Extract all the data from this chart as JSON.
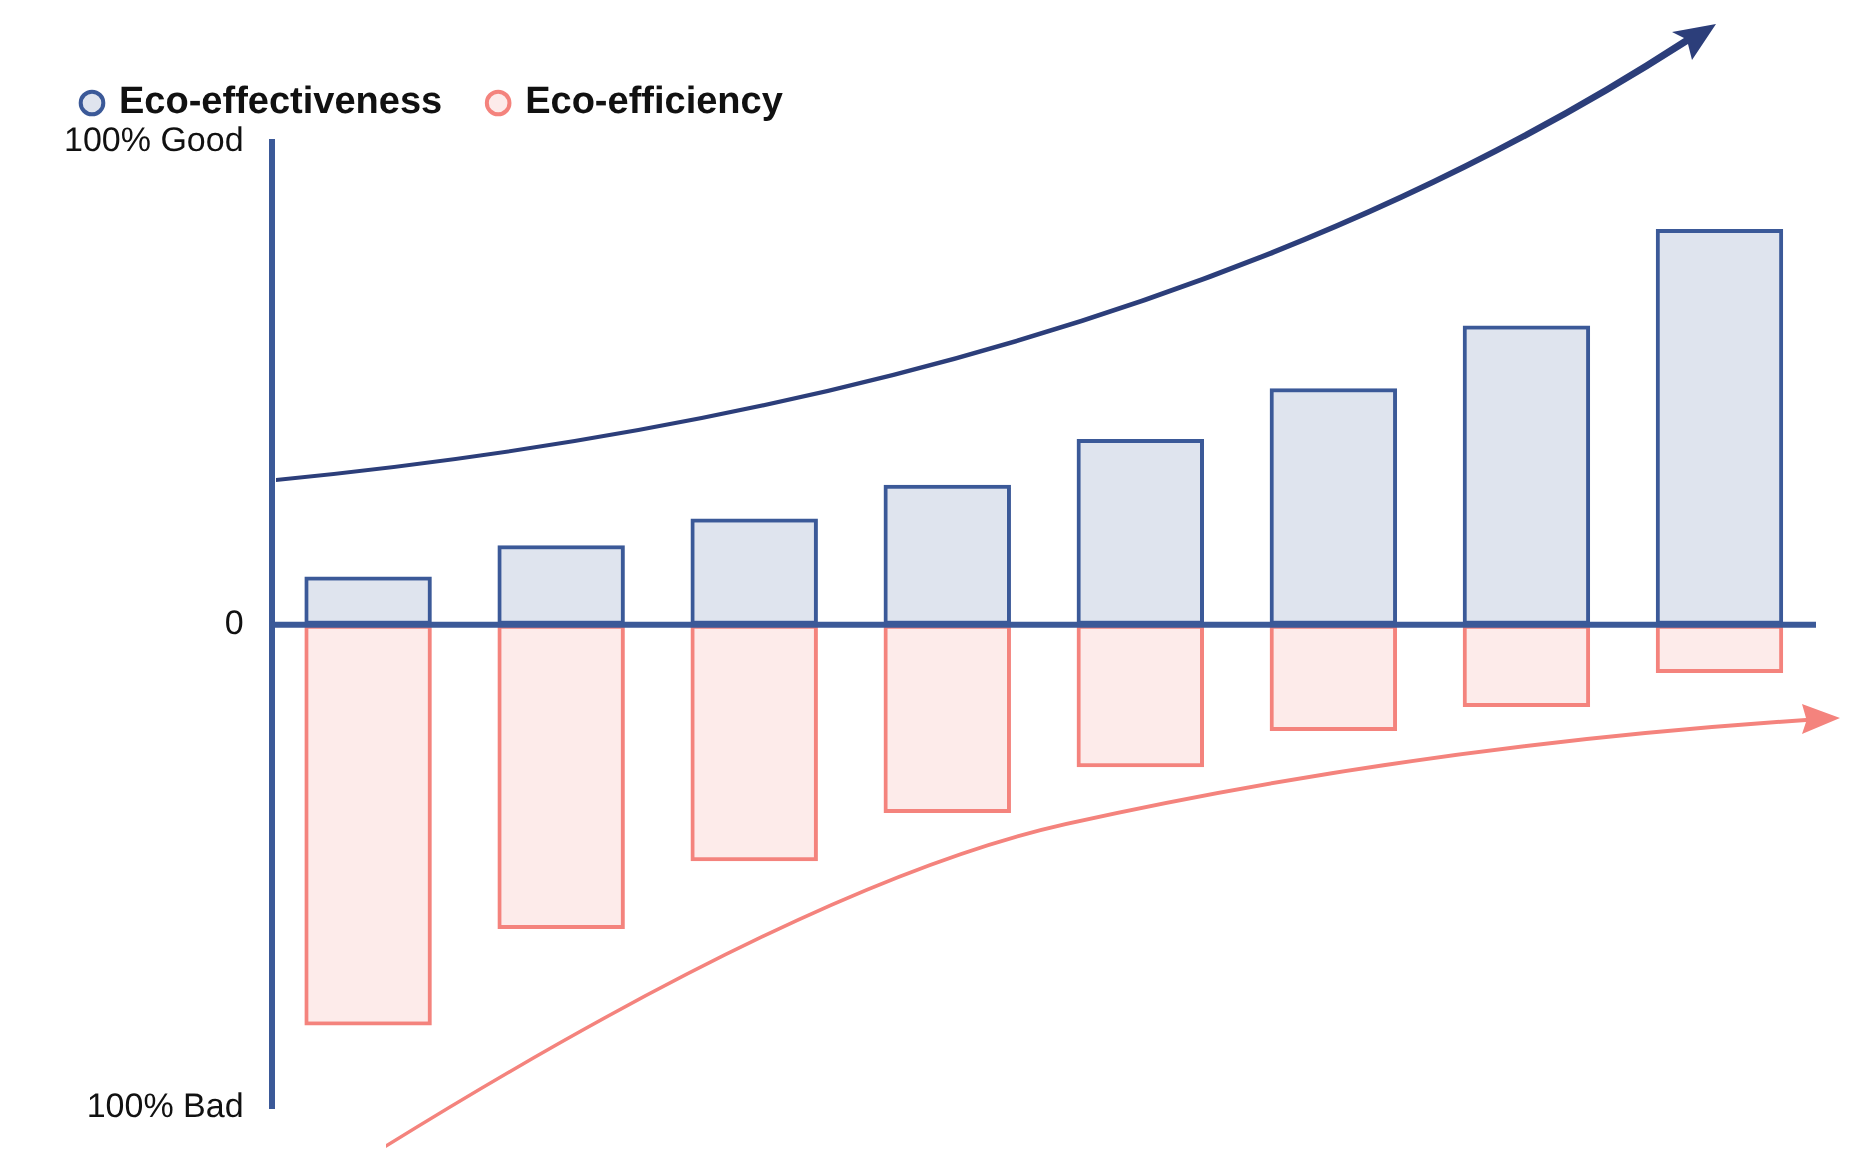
{
  "chart_data": {
    "type": "bar",
    "categories": [
      null,
      null,
      null,
      null,
      null,
      null,
      null,
      null
    ],
    "stacked": true,
    "series": [
      {
        "name": "Eco-effectiveness",
        "color": "#3b5998",
        "values": [
          10,
          16.5,
          22,
          29,
          38.5,
          49,
          62,
          82
        ]
      },
      {
        "name": "Eco-efficiency",
        "color": "#f4837d",
        "values": [
          -83,
          -63,
          -49,
          -39,
          -29.5,
          -22,
          -17,
          -10
        ]
      }
    ],
    "ylim": [
      -100,
      100
    ],
    "yticks": [
      {
        "value": 100,
        "label": "100% Good"
      },
      0,
      {
        "value": -100,
        "label": "100% Bad"
      }
    ],
    "tick_labels": "y",
    "grid": false,
    "legend": "top left",
    "ref_lines": [
      {
        "axis": "y",
        "value": 0,
        "color": "#3b5998"
      }
    ]
  }
}
